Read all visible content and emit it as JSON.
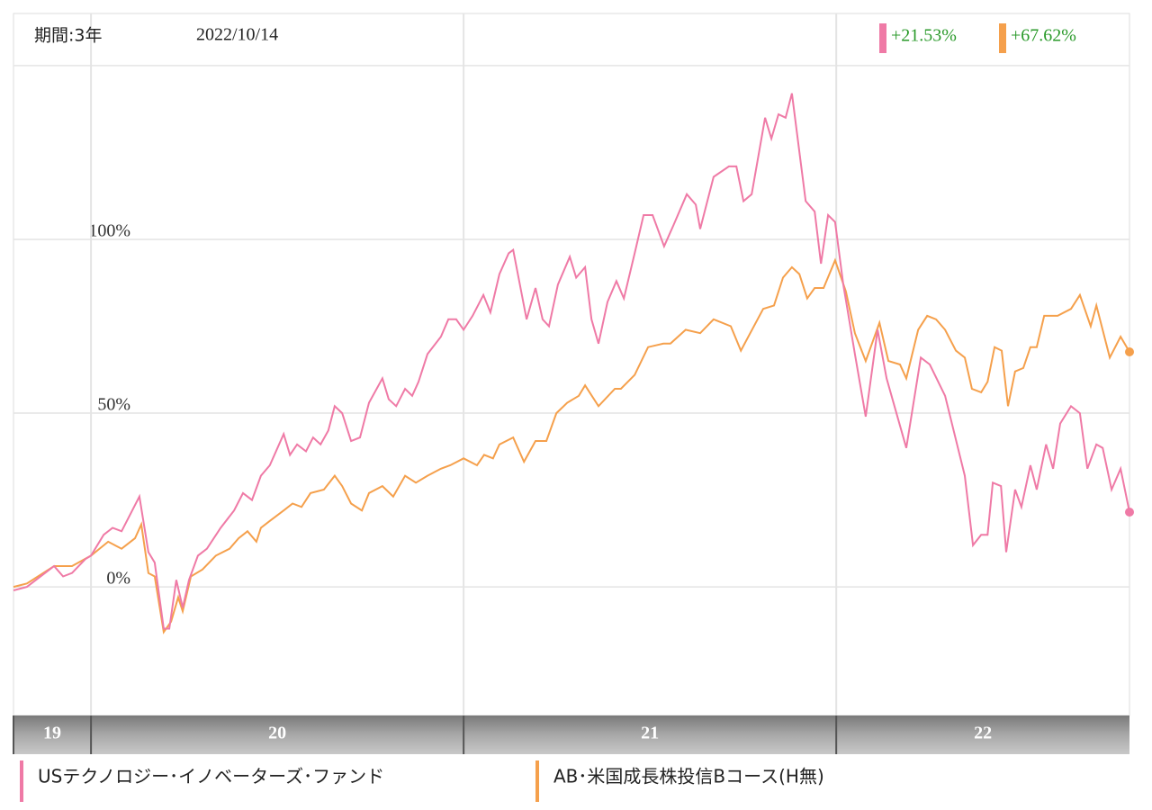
{
  "chart_data": {
    "type": "line",
    "period_label": "期間:3年",
    "date": "2022/10/14",
    "xlim": [
      2019.792,
      2022.787
    ],
    "ylim": [
      -37,
      165
    ],
    "yticks": [
      {
        "value": 0,
        "label": "0%"
      },
      {
        "value": 50,
        "label": "50%"
      },
      {
        "value": 100,
        "label": "100%"
      },
      {
        "value": 150,
        "label": null
      }
    ],
    "grid": true,
    "year_bands": [
      {
        "label": "19",
        "start": 2019.792,
        "end": 2020
      },
      {
        "label": "20",
        "start": 2020,
        "end": 2021
      },
      {
        "label": "21",
        "start": 2021,
        "end": 2022
      },
      {
        "label": "22",
        "start": 2022,
        "end": 2022.787
      }
    ],
    "series": [
      {
        "name": "USテクノロジー･イノベーターズ･ファンド",
        "color": "#ef7aa6",
        "end_label": "+21.53%",
        "x": [
          2019.792,
          2019.828,
          2019.901,
          2019.925,
          2019.949,
          2019.985,
          2020.0,
          2020.034,
          2020.058,
          2020.082,
          2020.13,
          2020.154,
          2020.171,
          2020.195,
          2020.21,
          2020.229,
          2020.246,
          2020.263,
          2020.287,
          2020.311,
          2020.348,
          2020.384,
          2020.408,
          2020.432,
          2020.456,
          2020.48,
          2020.517,
          2020.534,
          2020.553,
          2020.577,
          2020.596,
          2020.616,
          2020.637,
          2020.654,
          2020.674,
          2020.698,
          2020.722,
          2020.746,
          2020.782,
          2020.799,
          2020.819,
          2020.843,
          2020.862,
          2020.879,
          2020.903,
          2020.939,
          2020.959,
          2020.98,
          2021.0,
          2021.024,
          2021.053,
          2021.072,
          2021.096,
          2021.121,
          2021.133,
          2021.169,
          2021.193,
          2021.212,
          2021.229,
          2021.253,
          2021.285,
          2021.302,
          2021.326,
          2021.343,
          2021.362,
          2021.386,
          2021.41,
          2021.43,
          2021.459,
          2021.483,
          2021.507,
          2021.538,
          2021.563,
          2021.599,
          2021.623,
          2021.635,
          2021.671,
          2021.712,
          2021.732,
          2021.751,
          2021.773,
          2021.809,
          2021.826,
          2021.845,
          2021.864,
          2021.881,
          2021.918,
          2021.942,
          2021.959,
          2021.978,
          2021.997,
          2022.019,
          2022.05,
          2022.079,
          2022.111,
          2022.135,
          2022.188,
          2022.227,
          2022.251,
          2022.292,
          2022.345,
          2022.367,
          2022.389,
          2022.406,
          2022.42,
          2022.442,
          2022.456,
          2022.48,
          2022.497,
          2022.521,
          2022.538,
          2022.563,
          2022.582,
          2022.601,
          2022.63,
          2022.654,
          2022.674,
          2022.698,
          2022.715,
          2022.739,
          2022.763,
          2022.787
        ],
        "values": [
          -1,
          0,
          6,
          3,
          4,
          8,
          9,
          15,
          17,
          16,
          26,
          10,
          7,
          -12,
          -12,
          2,
          -6,
          2,
          9,
          11,
          17,
          22,
          27,
          25,
          32,
          35,
          44,
          38,
          41,
          39,
          43,
          41,
          45,
          52,
          50,
          42,
          43,
          53,
          60,
          54,
          52,
          57,
          55,
          59,
          67,
          72,
          77,
          77,
          74,
          78,
          84,
          79,
          90,
          96,
          97,
          77,
          86,
          77,
          75,
          87,
          95,
          89,
          92,
          77,
          70,
          82,
          88,
          83,
          96,
          107,
          107,
          98,
          104,
          113,
          110,
          103,
          118,
          121,
          121,
          111,
          113,
          135,
          129,
          136,
          135,
          142,
          111,
          108,
          93,
          107,
          105,
          87,
          67,
          49,
          74,
          60,
          40,
          66,
          64,
          55,
          32,
          12,
          15,
          15,
          30,
          29,
          10,
          28,
          23,
          35,
          28,
          41,
          34,
          47,
          52,
          50,
          34,
          41,
          40,
          28,
          34,
          21.53
        ]
      },
      {
        "name": "AB･米国成長株投信Bコース(H無)",
        "color": "#f5a04c",
        "end_label": "+67.62%",
        "x": [
          2019.792,
          2019.828,
          2019.901,
          2019.949,
          2020.0,
          2020.046,
          2020.082,
          2020.118,
          2020.135,
          2020.154,
          2020.171,
          2020.195,
          2020.215,
          2020.234,
          2020.246,
          2020.268,
          2020.299,
          2020.335,
          2020.372,
          2020.396,
          2020.42,
          2020.444,
          2020.456,
          2020.48,
          2020.517,
          2020.541,
          2020.565,
          2020.589,
          2020.625,
          2020.654,
          2020.674,
          2020.698,
          2020.727,
          2020.746,
          2020.782,
          2020.811,
          2020.843,
          2020.872,
          2020.903,
          2020.939,
          2020.964,
          2021.0,
          2021.036,
          2021.055,
          2021.079,
          2021.096,
          2021.133,
          2021.162,
          2021.193,
          2021.222,
          2021.249,
          2021.278,
          2021.309,
          2021.326,
          2021.362,
          2021.406,
          2021.422,
          2021.459,
          2021.495,
          2021.536,
          2021.555,
          2021.596,
          2021.635,
          2021.671,
          2021.717,
          2021.744,
          2021.804,
          2021.833,
          2021.857,
          2021.881,
          2021.901,
          2021.922,
          2021.942,
          2021.966,
          2021.997,
          2022.026,
          2022.05,
          2022.079,
          2022.116,
          2022.14,
          2022.171,
          2022.188,
          2022.22,
          2022.244,
          2022.268,
          2022.292,
          2022.321,
          2022.345,
          2022.364,
          2022.389,
          2022.406,
          2022.425,
          2022.444,
          2022.461,
          2022.48,
          2022.502,
          2022.521,
          2022.538,
          2022.558,
          2022.594,
          2022.63,
          2022.654,
          2022.683,
          2022.698,
          2022.734,
          2022.763,
          2022.787
        ],
        "values": [
          0,
          1,
          6,
          6,
          9,
          13,
          11,
          14,
          18,
          4,
          3,
          -13,
          -10,
          -3,
          -7,
          3,
          5,
          9,
          11,
          14,
          16,
          13,
          17,
          19,
          22,
          24,
          23,
          27,
          28,
          32,
          29,
          24,
          22,
          27,
          29,
          26,
          32,
          30,
          32,
          34,
          35,
          37,
          35,
          38,
          37,
          41,
          43,
          36,
          42,
          42,
          50,
          53,
          55,
          58,
          52,
          57,
          57,
          61,
          69,
          70,
          70,
          74,
          73,
          77,
          75,
          68,
          80,
          81,
          89,
          92,
          90,
          83,
          86,
          86,
          94,
          85,
          73,
          65,
          76,
          65,
          64,
          60,
          74,
          78,
          77,
          74,
          68,
          66,
          57,
          56,
          59,
          69,
          68,
          52,
          62,
          63,
          69,
          69,
          78,
          78,
          80,
          84,
          75,
          81,
          66,
          72,
          67.62
        ]
      }
    ]
  }
}
